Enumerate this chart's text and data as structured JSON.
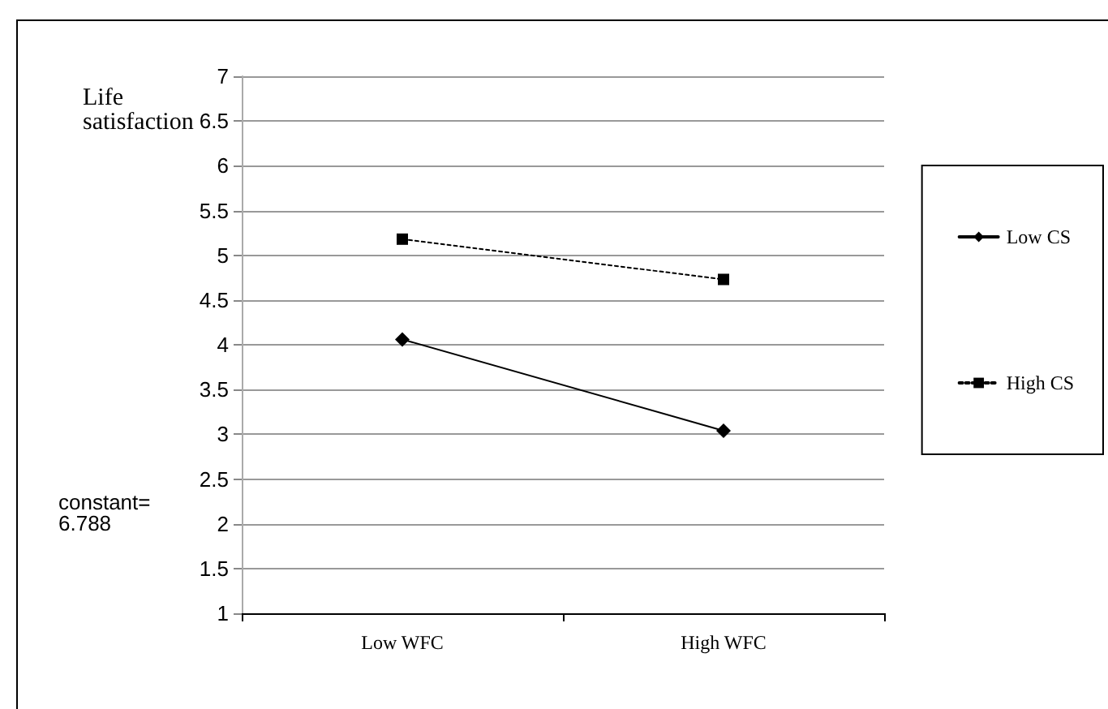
{
  "chart_data": {
    "type": "line",
    "ylabel": "Life satisfaction",
    "categories": [
      "Low WFC",
      "High WFC"
    ],
    "series": [
      {
        "name": "Low CS",
        "color": "#000000",
        "values": [
          4.06,
          3.04
        ],
        "marker": "diamond",
        "line_style": "solid"
      },
      {
        "name": "High CS",
        "color": "#000000",
        "values": [
          5.18,
          4.73
        ],
        "marker": "square",
        "line_style": "dotted"
      }
    ],
    "ylim": [
      1,
      7
    ],
    "yticks": [
      1,
      1.5,
      2,
      2.5,
      3,
      3.5,
      4,
      4.5,
      5,
      5.5,
      6,
      6.5,
      7
    ],
    "grid": "y",
    "legend": "right",
    "annotations": [
      "constant=\n6.788"
    ]
  }
}
